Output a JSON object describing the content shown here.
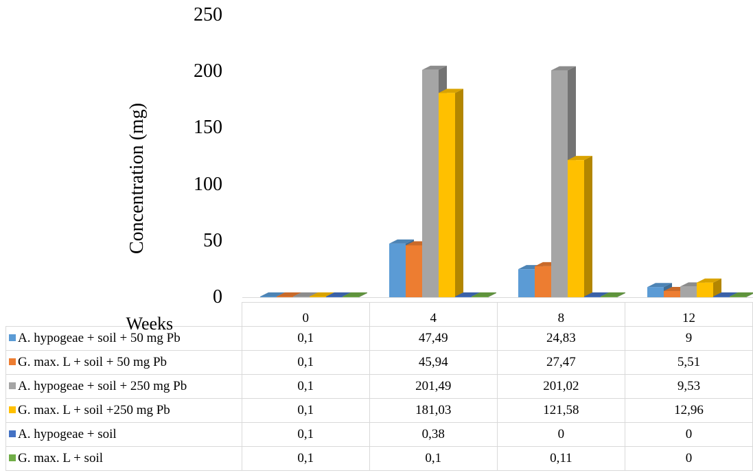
{
  "chart_data": {
    "type": "bar",
    "style": "3d-clustered-column",
    "ylabel": "Concentration (mg)",
    "xlabel": "Weeks",
    "ylim": [
      0,
      250
    ],
    "yticks": [
      "0",
      "50",
      "100",
      "150",
      "200",
      "250"
    ],
    "categories": [
      "0",
      "4",
      "8",
      "12"
    ],
    "legend": "data-table-left",
    "grid": false,
    "series": [
      {
        "name": "A. hypogeae + soil + 50 mg Pb",
        "color": "#5b9bd5",
        "values": [
          0.1,
          47.49,
          24.83,
          9
        ],
        "labels": [
          "0,1",
          "47,49",
          "24,83",
          "9"
        ]
      },
      {
        "name": "G. max. L + soil + 50 mg Pb",
        "color": "#ed7d31",
        "values": [
          0.1,
          45.94,
          27.47,
          5.51
        ],
        "labels": [
          "0,1",
          "45,94",
          "27,47",
          "5,51"
        ]
      },
      {
        "name": "A. hypogeae + soil + 250 mg Pb",
        "color": "#a5a5a5",
        "values": [
          0.1,
          201.49,
          201.02,
          9.53
        ],
        "labels": [
          "0,1",
          "201,49",
          "201,02",
          "9,53"
        ]
      },
      {
        "name": "G. max. L + soil +250 mg Pb",
        "color": "#ffc000",
        "values": [
          0.1,
          181.03,
          121.58,
          12.96
        ],
        "labels": [
          "0,1",
          "181,03",
          "121,58",
          "12,96"
        ]
      },
      {
        "name": "A. hypogeae + soil",
        "color": "#4472c4",
        "values": [
          0.1,
          0.38,
          0,
          0
        ],
        "labels": [
          "0,1",
          "0,38",
          "0",
          "0"
        ]
      },
      {
        "name": "G. max. L + soil",
        "color": "#70ad47",
        "values": [
          0.1,
          0.1,
          0.11,
          0
        ],
        "labels": [
          "0,1",
          "0,1",
          "0,11",
          "0"
        ]
      }
    ]
  }
}
